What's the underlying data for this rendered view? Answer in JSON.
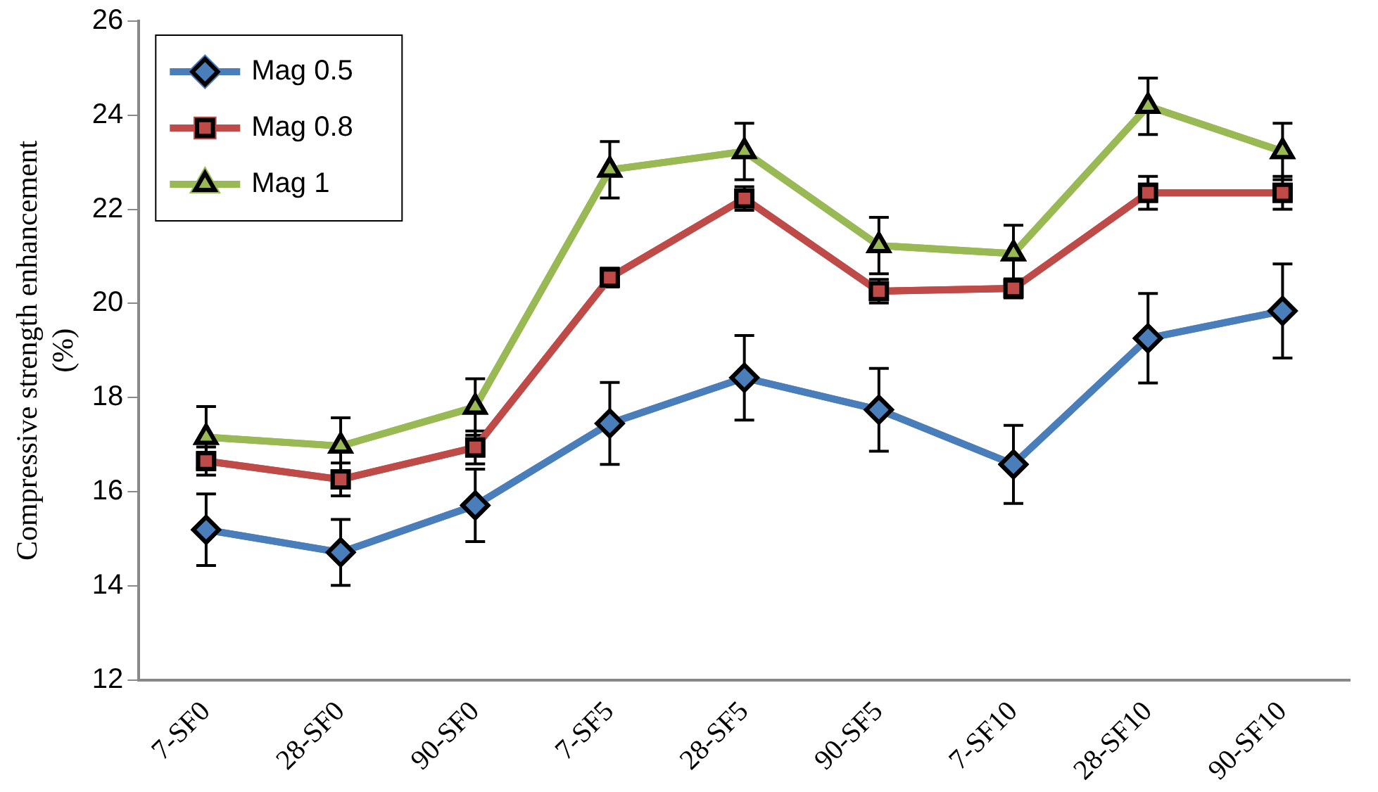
{
  "chart_data": {
    "type": "line",
    "ylabel": "Compressive strength enhancement (%)",
    "categories": [
      "7-SF0",
      "28-SF0",
      "90-SF0",
      "7-SF5",
      "28-SF5",
      "90-SF5",
      "7-SF10",
      "28-SF10",
      "90-SF10"
    ],
    "ylim": [
      12,
      26
    ],
    "yticks": [
      12,
      14,
      16,
      18,
      20,
      22,
      24,
      26
    ],
    "grid": false,
    "legend": "top left",
    "series": [
      {
        "name": "Mag 0.5",
        "color": "#4a7ebb",
        "marker": "diamond",
        "values": [
          15.19,
          14.71,
          15.71,
          17.45,
          18.42,
          17.74,
          16.58,
          19.26,
          19.84
        ],
        "errors": [
          0.76,
          0.7,
          0.77,
          0.87,
          0.9,
          0.88,
          0.83,
          0.95,
          1.0
        ]
      },
      {
        "name": "Mag 0.8",
        "color": "#be4b48",
        "marker": "square",
        "values": [
          16.65,
          16.26,
          16.94,
          20.55,
          22.23,
          20.26,
          20.32,
          22.35,
          22.35
        ],
        "errors": [
          0.3,
          0.35,
          0.35,
          0.2,
          0.25,
          0.25,
          0.2,
          0.35,
          0.35
        ]
      },
      {
        "name": "Mag 1",
        "color": "#98b954",
        "marker": "triangle",
        "values": [
          17.16,
          16.97,
          17.8,
          22.84,
          23.23,
          21.23,
          21.06,
          24.19,
          23.23
        ],
        "errors": [
          0.65,
          0.6,
          0.6,
          0.6,
          0.6,
          0.6,
          0.6,
          0.6,
          0.6
        ]
      }
    ]
  }
}
